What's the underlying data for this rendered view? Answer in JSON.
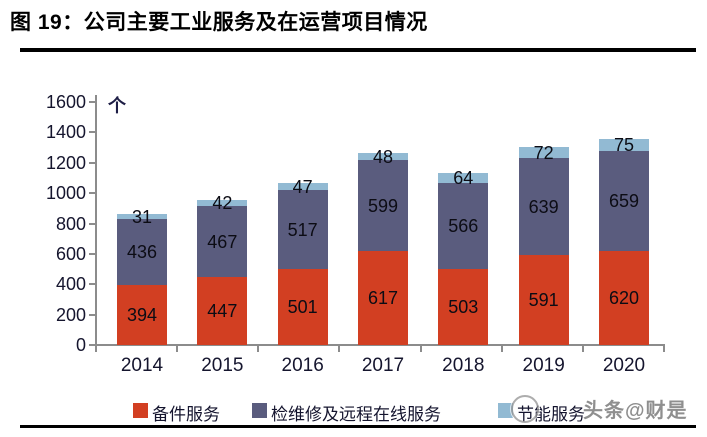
{
  "title": "图 19：公司主要工业服务及在运营项目情况",
  "watermark": {
    "text": "头条@财是"
  },
  "chart_data": {
    "type": "bar",
    "stacked": true,
    "title": "公司主要工业服务及在运营项目情况",
    "unit_label": "个",
    "categories": [
      "2014",
      "2015",
      "2016",
      "2017",
      "2018",
      "2019",
      "2020"
    ],
    "series": [
      {
        "name": "备件服务",
        "color": "#D23F22",
        "values": [
          394,
          447,
          501,
          617,
          503,
          591,
          620
        ]
      },
      {
        "name": "检维修及远程在线服务",
        "color": "#5A5C7E",
        "values": [
          436,
          467,
          517,
          599,
          566,
          639,
          659
        ]
      },
      {
        "name": "节能服务",
        "color": "#92BAD3",
        "values": [
          31,
          42,
          47,
          48,
          64,
          72,
          75
        ]
      }
    ],
    "ylim": [
      0,
      1600
    ],
    "ytick_step": 200,
    "grid": false,
    "legend_position": "bottom",
    "value_labels": true
  }
}
